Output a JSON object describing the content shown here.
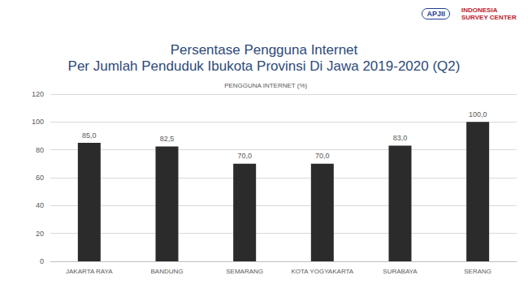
{
  "chart_data": {
    "type": "bar",
    "title": "Persentase Pengguna Internet\nPer Jumlah Penduduk Ibukota Provinsi Di Jawa 2019-2020 (Q2)",
    "categories": [
      "JAKARTA RAYA",
      "BANDUNG",
      "SEMARANG",
      "KOTA YOGYAKARTA",
      "SURABAYA",
      "SERANG"
    ],
    "series": [
      {
        "name": "PENGGUNA INTERNET (%)",
        "color": "#2b2b2b",
        "values": [
          85.0,
          82.5,
          70.0,
          70.0,
          83.0,
          100.0
        ],
        "value_labels": [
          "85,0",
          "82,5",
          "70,0",
          "70,0",
          "83,0",
          "100,0"
        ]
      }
    ],
    "ylim": [
      0,
      120
    ],
    "yticks": [
      0,
      20,
      40,
      60,
      80,
      100,
      120
    ],
    "grid": true,
    "legend": "top",
    "data_labels": true
  },
  "logos": [
    "APJII",
    "INDONESIA SURVEY CENTER"
  ]
}
